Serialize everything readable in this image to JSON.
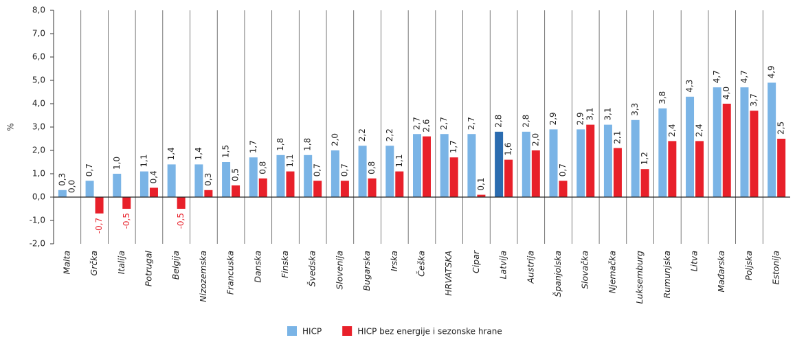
{
  "chart_data": {
    "type": "bar",
    "y_label": "%",
    "categories": [
      "Malta",
      "Grčka",
      "Italija",
      "Potrugal",
      "Belgija",
      "Nizozemska",
      "Francuska",
      "Danska",
      "Finska",
      "Švedska",
      "Slovenija",
      "Bugarska",
      "Irska",
      "Češka",
      "HRVATSKA",
      "Cipar",
      "Latvija",
      "Austrija",
      "Španjolska",
      "Slovačka",
      "Njemačka",
      "Luksemburg",
      "Rumunjska",
      "Litva",
      "Mađarska",
      "Poljska",
      "Estonija"
    ],
    "series": [
      {
        "name": "HICP",
        "color": "#7ab4e6",
        "colors": [
          "#7ab4e6",
          "#7ab4e6",
          "#7ab4e6",
          "#7ab4e6",
          "#7ab4e6",
          "#7ab4e6",
          "#7ab4e6",
          "#7ab4e6",
          "#7ab4e6",
          "#7ab4e6",
          "#7ab4e6",
          "#7ab4e6",
          "#7ab4e6",
          "#7ab4e6",
          "#7ab4e6",
          "#7ab4e6",
          "#2b6cb0",
          "#7ab4e6",
          "#7ab4e6",
          "#7ab4e6",
          "#7ab4e6",
          "#7ab4e6",
          "#7ab4e6",
          "#7ab4e6",
          "#7ab4e6",
          "#7ab4e6",
          "#7ab4e6"
        ],
        "values": [
          0.3,
          0.7,
          1.0,
          1.1,
          1.4,
          1.4,
          1.5,
          1.7,
          1.8,
          1.8,
          2.0,
          2.2,
          2.2,
          2.7,
          2.7,
          2.7,
          2.8,
          2.8,
          2.9,
          2.9,
          3.1,
          3.3,
          3.8,
          4.3,
          4.7,
          4.7,
          4.9
        ],
        "value_labels": [
          "0,3",
          "0,7",
          "1,0",
          "1,1",
          "1,4",
          "1,4",
          "1,5",
          "1,7",
          "1,8",
          "1,8",
          "2,0",
          "2,2",
          "2,2",
          "2,7",
          "2,7",
          "2,7",
          "2,8",
          "2,8",
          "2,9",
          "2,9",
          "3,1",
          "3,3",
          "3,8",
          "4,3",
          "4,7",
          "4,7",
          "4,9"
        ]
      },
      {
        "name": "HICP bez energije i sezonske hrane",
        "color": "#e8202a",
        "values": [
          0.0,
          -0.7,
          -0.5,
          0.4,
          -0.5,
          0.3,
          0.5,
          0.8,
          1.1,
          0.7,
          0.7,
          0.8,
          1.1,
          2.6,
          1.7,
          0.1,
          1.6,
          2.0,
          0.7,
          3.1,
          2.1,
          1.2,
          2.4,
          2.4,
          4.0,
          3.7,
          2.5
        ],
        "value_labels": [
          "0,0",
          "-0,7",
          "-0,5",
          "0,4",
          "-0,5",
          "0,3",
          "0,5",
          "0,8",
          "1,1",
          "0,7",
          "0,7",
          "0,8",
          "1,1",
          "2,6",
          "1,7",
          "0,1",
          "1,6",
          "2,0",
          "0,7",
          "3,1",
          "2,1",
          "1,2",
          "2,4",
          "2,4",
          "4,0",
          "3,7",
          "2,5"
        ]
      }
    ],
    "negative_label_color": "#e8202a",
    "ylim": [
      -2,
      8
    ],
    "yticks": [
      {
        "value": -2,
        "label": "-2,0"
      },
      {
        "value": -1,
        "label": "-1,0"
      },
      {
        "value": 0,
        "label": "0,0"
      },
      {
        "value": 1,
        "label": "1,0"
      },
      {
        "value": 2,
        "label": "2,0"
      },
      {
        "value": 3,
        "label": "3,0"
      },
      {
        "value": 4,
        "label": "4,0"
      },
      {
        "value": 5,
        "label": "5,0"
      },
      {
        "value": 6,
        "label": "6,0"
      },
      {
        "value": 7,
        "label": "7,0"
      },
      {
        "value": 8,
        "label": "8,0"
      }
    ],
    "legend": "bottom"
  }
}
